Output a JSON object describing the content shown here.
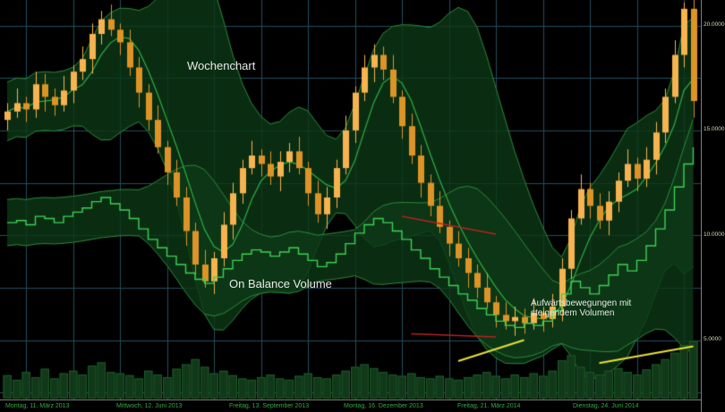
{
  "chart_data": {
    "type": "candlestick",
    "title": "Wochenchart",
    "indicator_label": "On Balance Volume",
    "annotation_lines": [
      "Aufwärtsbewegungen mit",
      "steigendem Volumen"
    ],
    "y_tick_labels": [
      "20.0000",
      "15.0000",
      "10.0000",
      "5.0000"
    ],
    "y_ticks": [
      20,
      15,
      10,
      5
    ],
    "ylim": [
      2.2,
      21.5
    ],
    "grid": true,
    "x_tick_labels": [
      "Montag, 11. März 2013",
      "Mittwoch, 12. Juni 2013",
      "Freitag, 13. September 2013",
      "Montag, 16. Dezember 2013",
      "Freitag, 21. März 2014",
      "Dienstag, 24. Juni 2014"
    ],
    "ohlc": [
      [
        15.5,
        16.3,
        15.0,
        15.9
      ],
      [
        15.9,
        17.0,
        15.6,
        16.3
      ],
      [
        16.3,
        16.6,
        15.4,
        16.0
      ],
      [
        16.0,
        17.8,
        15.6,
        17.2
      ],
      [
        17.2,
        17.7,
        15.9,
        16.6
      ],
      [
        16.6,
        17.0,
        15.7,
        16.2
      ],
      [
        16.2,
        17.6,
        15.9,
        16.9
      ],
      [
        16.9,
        18.1,
        16.3,
        17.8
      ],
      [
        17.8,
        19.0,
        17.4,
        18.4
      ],
      [
        18.4,
        20.1,
        17.7,
        19.6
      ],
      [
        19.6,
        20.7,
        19.1,
        20.3
      ],
      [
        20.3,
        21.0,
        19.5,
        19.8
      ],
      [
        19.8,
        20.1,
        18.6,
        19.2
      ],
      [
        19.2,
        19.8,
        17.6,
        18.0
      ],
      [
        18.0,
        18.5,
        16.1,
        16.8
      ],
      [
        16.8,
        17.2,
        15.0,
        15.5
      ],
      [
        15.5,
        16.2,
        13.9,
        14.2
      ],
      [
        14.2,
        14.5,
        12.4,
        13.0
      ],
      [
        13.0,
        13.6,
        11.4,
        11.8
      ],
      [
        11.8,
        12.3,
        9.5,
        10.2
      ],
      [
        10.2,
        10.6,
        8.1,
        8.6
      ],
      [
        8.6,
        9.3,
        7.5,
        7.8
      ],
      [
        7.8,
        9.2,
        7.2,
        8.9
      ],
      [
        8.9,
        11.1,
        8.5,
        10.5
      ],
      [
        10.5,
        12.5,
        9.8,
        12.0
      ],
      [
        12.0,
        13.6,
        11.5,
        13.2
      ],
      [
        13.2,
        14.5,
        12.9,
        13.8
      ],
      [
        13.8,
        14.1,
        12.8,
        13.4
      ],
      [
        13.4,
        14.0,
        12.4,
        12.8
      ],
      [
        12.8,
        14.0,
        12.1,
        13.5
      ],
      [
        13.5,
        14.4,
        13.0,
        14.0
      ],
      [
        14.0,
        14.7,
        12.9,
        13.2
      ],
      [
        13.2,
        13.5,
        11.4,
        12.0
      ],
      [
        12.0,
        12.6,
        10.6,
        11.0
      ],
      [
        11.0,
        12.3,
        10.3,
        11.8
      ],
      [
        11.8,
        13.6,
        11.3,
        13.2
      ],
      [
        13.2,
        15.7,
        12.9,
        15.0
      ],
      [
        15.0,
        17.1,
        14.4,
        16.8
      ],
      [
        16.8,
        18.6,
        16.4,
        18.0
      ],
      [
        18.0,
        19.1,
        17.3,
        18.6
      ],
      [
        18.6,
        19.0,
        17.4,
        17.9
      ],
      [
        17.9,
        18.6,
        16.3,
        16.6
      ],
      [
        16.6,
        16.9,
        14.6,
        15.2
      ],
      [
        15.2,
        15.8,
        13.4,
        13.8
      ],
      [
        13.8,
        14.3,
        11.8,
        12.5
      ],
      [
        12.5,
        12.9,
        10.9,
        11.4
      ],
      [
        11.4,
        12.1,
        10.1,
        10.4
      ],
      [
        10.4,
        10.7,
        9.0,
        9.6
      ],
      [
        9.6,
        10.2,
        8.5,
        8.9
      ],
      [
        8.9,
        9.4,
        7.5,
        8.2
      ],
      [
        8.2,
        8.6,
        7.0,
        7.5
      ],
      [
        7.5,
        8.2,
        6.5,
        6.8
      ],
      [
        6.8,
        7.1,
        5.6,
        6.2
      ],
      [
        6.2,
        6.8,
        5.5,
        5.9
      ],
      [
        5.9,
        6.6,
        5.2,
        6.1
      ],
      [
        6.1,
        6.5,
        5.3,
        5.8
      ],
      [
        5.8,
        7.0,
        5.5,
        6.3
      ],
      [
        6.3,
        6.6,
        5.4,
        6.0
      ],
      [
        6.0,
        7.2,
        5.6,
        6.6
      ],
      [
        6.6,
        8.9,
        5.9,
        8.4
      ],
      [
        8.4,
        11.2,
        7.9,
        10.8
      ],
      [
        10.8,
        12.9,
        10.5,
        12.2
      ],
      [
        12.2,
        12.5,
        10.8,
        11.4
      ],
      [
        11.4,
        12.0,
        10.3,
        10.7
      ],
      [
        10.7,
        12.1,
        10.0,
        11.6
      ],
      [
        11.6,
        13.0,
        11.1,
        12.6
      ],
      [
        12.6,
        14.1,
        12.3,
        13.4
      ],
      [
        13.4,
        13.7,
        12.1,
        12.7
      ],
      [
        12.7,
        14.2,
        12.3,
        13.6
      ],
      [
        13.6,
        15.4,
        12.9,
        14.9
      ],
      [
        14.9,
        17.0,
        14.4,
        16.6
      ],
      [
        16.6,
        19.3,
        16.3,
        18.6
      ],
      [
        18.6,
        21.1,
        18.0,
        20.8
      ],
      [
        20.8,
        21.3,
        15.6,
        16.4
      ]
    ],
    "obv": [
      10.6,
      10.7,
      10.5,
      10.9,
      10.8,
      10.6,
      10.9,
      11.1,
      11.3,
      11.6,
      11.8,
      11.5,
      11.2,
      10.8,
      10.3,
      9.8,
      9.4,
      9.0,
      8.6,
      8.2,
      7.9,
      7.7,
      8.0,
      8.4,
      8.8,
      9.1,
      9.3,
      9.2,
      9.0,
      9.2,
      9.4,
      9.1,
      8.8,
      8.5,
      8.7,
      9.1,
      9.6,
      10.1,
      10.5,
      10.8,
      10.6,
      10.2,
      9.8,
      9.3,
      8.9,
      8.4,
      8.0,
      7.6,
      7.2,
      6.9,
      6.5,
      6.2,
      5.9,
      5.7,
      5.6,
      5.8,
      5.7,
      5.9,
      6.4,
      7.2,
      7.8,
      7.5,
      7.2,
      7.6,
      8.1,
      8.6,
      8.3,
      8.8,
      9.5,
      10.3,
      11.2,
      12.3,
      13.4,
      14.2
    ],
    "volume": [
      35,
      28,
      40,
      32,
      45,
      30,
      38,
      42,
      36,
      50,
      55,
      40,
      38,
      35,
      30,
      42,
      36,
      32,
      45,
      52,
      60,
      48,
      38,
      42,
      35,
      30,
      28,
      32,
      36,
      30,
      28,
      34,
      38,
      32,
      30,
      36,
      42,
      48,
      52,
      46,
      40,
      36,
      34,
      38,
      32,
      30,
      34,
      30,
      28,
      32,
      36,
      40,
      34,
      30,
      36,
      32,
      38,
      34,
      42,
      58,
      66,
      48,
      40,
      36,
      42,
      46,
      40,
      36,
      44,
      52,
      60,
      70,
      82,
      88
    ],
    "bollinger": {
      "window": 12,
      "mult": 2.0,
      "min_half": 1.4
    },
    "obv_band": {
      "window": 12,
      "mult": 2.5,
      "min_half": 1.1
    },
    "trendlines": [
      {
        "name": "red-trendline-upper",
        "color": "#b82222",
        "width": 1.5,
        "from": [
          42,
          10.9
        ],
        "to": [
          52,
          10.05
        ]
      },
      {
        "name": "red-trendline-lower",
        "color": "#b82222",
        "width": 1.5,
        "from": [
          43,
          5.3
        ],
        "to": [
          52,
          5.15
        ]
      },
      {
        "name": "yellow-volume-trendline-1",
        "color": "#e8e330",
        "width": 2,
        "from": [
          48,
          4.0
        ],
        "to": [
          55,
          5.0
        ]
      },
      {
        "name": "yellow-volume-trendline-2",
        "color": "#e8e330",
        "width": 2,
        "from": [
          63,
          3.9
        ],
        "to": [
          73,
          4.7
        ]
      }
    ],
    "colors": {
      "background": "#000000",
      "grid": "#234e5c",
      "candle_up": "#f7b34f",
      "candle_down": "#dd9426",
      "band_fill": "rgba(13,56,22,0.8)",
      "band_border": "#2c8a3a",
      "ma_line": "#2fae42",
      "obv_line": "#3fd055",
      "volume_fill": "#12381a",
      "volume_border": "#1d5a28",
      "axis_text": "#d8d8b4",
      "date_text": "#3aa845",
      "annotation_text": "#e9e9e9"
    }
  }
}
